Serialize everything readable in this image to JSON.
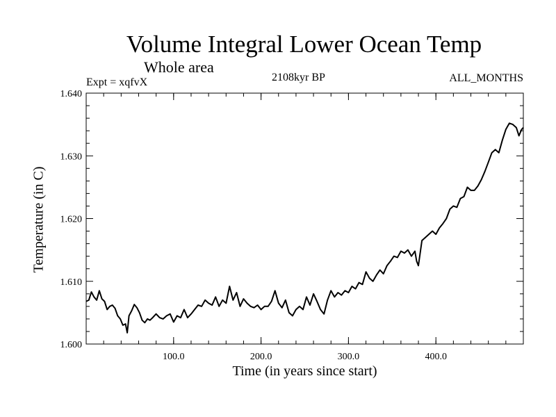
{
  "chart_data": {
    "type": "line",
    "title": "Volume Integral Lower Ocean Temp",
    "subtitle": "Whole area",
    "experiment_label": "Expt = xqfvX",
    "period_label": "2108kyr BP",
    "months_label": "ALL_MONTHS",
    "xlabel": "Time (in years since start)",
    "ylabel": "Temperature (in C)",
    "xlim": [
      0,
      500
    ],
    "ylim": [
      1.6,
      1.64
    ],
    "x_ticks": [
      100,
      200,
      300,
      400
    ],
    "x_tick_labels": [
      "100.0",
      "200.0",
      "300.0",
      "400.0"
    ],
    "y_ticks": [
      1.6,
      1.61,
      1.62,
      1.63,
      1.64
    ],
    "y_tick_labels": [
      "1.600",
      "1.610",
      "1.620",
      "1.630",
      "1.640"
    ],
    "series": [
      {
        "name": "Volume integral lower ocean temperature",
        "x": [
          0,
          3,
          6,
          9,
          12,
          15,
          18,
          21,
          24,
          27,
          30,
          33,
          36,
          39,
          42,
          45,
          47,
          49,
          52,
          55,
          58,
          61,
          64,
          67,
          70,
          73,
          76,
          80,
          84,
          88,
          92,
          96,
          100,
          104,
          108,
          112,
          116,
          120,
          124,
          128,
          132,
          136,
          140,
          144,
          148,
          152,
          156,
          160,
          164,
          168,
          172,
          176,
          180,
          184,
          188,
          192,
          196,
          200,
          204,
          208,
          212,
          216,
          220,
          224,
          228,
          232,
          236,
          240,
          244,
          248,
          252,
          256,
          260,
          264,
          268,
          272,
          276,
          280,
          284,
          288,
          292,
          296,
          300,
          304,
          308,
          312,
          316,
          320,
          324,
          328,
          332,
          336,
          340,
          344,
          348,
          352,
          356,
          360,
          364,
          368,
          372,
          376,
          378,
          380,
          384,
          388,
          392,
          396,
          400,
          404,
          408,
          412,
          416,
          420,
          424,
          428,
          432,
          436,
          440,
          444,
          448,
          452,
          456,
          460,
          464,
          468,
          472,
          476,
          480,
          484,
          488,
          492,
          495,
          498,
          500
        ],
        "values": [
          1.6068,
          1.607,
          1.6083,
          1.6075,
          1.607,
          1.6085,
          1.6072,
          1.6068,
          1.6055,
          1.606,
          1.6062,
          1.6057,
          1.6045,
          1.604,
          1.603,
          1.6032,
          1.6018,
          1.6045,
          1.6053,
          1.6063,
          1.6058,
          1.605,
          1.6038,
          1.6034,
          1.604,
          1.6038,
          1.6042,
          1.6048,
          1.6042,
          1.604,
          1.6045,
          1.6048,
          1.6035,
          1.6045,
          1.6042,
          1.6055,
          1.6042,
          1.6048,
          1.6055,
          1.6062,
          1.606,
          1.607,
          1.6065,
          1.6062,
          1.6075,
          1.606,
          1.607,
          1.6065,
          1.6092,
          1.607,
          1.6082,
          1.606,
          1.6072,
          1.6065,
          1.606,
          1.6058,
          1.6062,
          1.6055,
          1.606,
          1.606,
          1.6068,
          1.6085,
          1.6065,
          1.6058,
          1.607,
          1.605,
          1.6045,
          1.6055,
          1.606,
          1.6055,
          1.6075,
          1.6062,
          1.608,
          1.6068,
          1.6055,
          1.6048,
          1.607,
          1.6085,
          1.6075,
          1.6082,
          1.6078,
          1.6085,
          1.6082,
          1.6092,
          1.6088,
          1.6098,
          1.6095,
          1.6115,
          1.6105,
          1.61,
          1.611,
          1.6118,
          1.6112,
          1.6125,
          1.6132,
          1.614,
          1.6138,
          1.6148,
          1.6145,
          1.615,
          1.614,
          1.6148,
          1.6132,
          1.6125,
          1.6165,
          1.617,
          1.6175,
          1.618,
          1.6175,
          1.6185,
          1.6192,
          1.62,
          1.6215,
          1.622,
          1.6218,
          1.6232,
          1.6235,
          1.625,
          1.6245,
          1.6245,
          1.6252,
          1.6262,
          1.6275,
          1.629,
          1.6305,
          1.631,
          1.6305,
          1.6325,
          1.6342,
          1.6352,
          1.635,
          1.6345,
          1.6332,
          1.6342,
          1.6345
        ]
      }
    ]
  }
}
